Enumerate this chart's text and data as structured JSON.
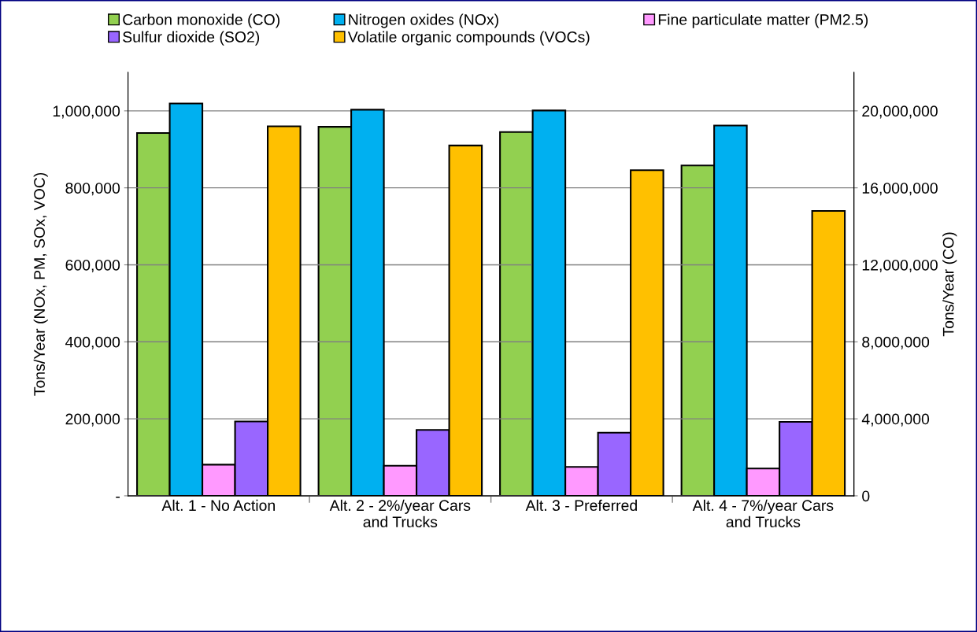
{
  "chart_data": {
    "type": "bar",
    "categories": [
      "Alt. 1 - No Action",
      "Alt. 2 - 2%/year Cars\nand Trucks",
      "Alt. 3 - Preferred",
      "Alt. 4 - 7%/year Cars\nand Trucks"
    ],
    "series": [
      {
        "name": "Carbon monoxide (CO)",
        "color": "#92d050",
        "axis": "y2",
        "values": [
          18850000,
          19170000,
          18900000,
          17160000
        ]
      },
      {
        "name": "Nitrogen oxides (NOx)",
        "color": "#00b0f0",
        "values": [
          1019000,
          1003000,
          1001000,
          962000
        ]
      },
      {
        "name": "Fine particulate matter (PM2.5)",
        "color": "#ff99ff",
        "values": [
          81000,
          78000,
          75000,
          71000
        ]
      },
      {
        "name": "Sulfur dioxide (SO2)",
        "color": "#9966ff",
        "values": [
          193000,
          171000,
          164000,
          192000
        ]
      },
      {
        "name": "Volatile organic compounds (VOCs)",
        "color": "#ffc000",
        "values": [
          960000,
          910000,
          846000,
          740000
        ]
      }
    ],
    "ylabel": "Tons/Year (NOx, PM, SOx, VOC)",
    "y2label": "Tons/Year (CO)",
    "ylim": [
      0,
      1100000
    ],
    "yticks": [
      {
        "value": 0,
        "label": "-"
      },
      {
        "value": 200000,
        "label": "200,000"
      },
      {
        "value": 400000,
        "label": "400,000"
      },
      {
        "value": 600000,
        "label": "600,000"
      },
      {
        "value": 800000,
        "label": "800,000"
      },
      {
        "value": 1000000,
        "label": "1,000,000"
      }
    ],
    "y2lim": [
      0,
      22000000
    ],
    "y2ticks": [
      0,
      {
        "value": 4000000,
        "label": "4,000,000"
      },
      {
        "value": 8000000,
        "label": "8,000,000"
      },
      {
        "value": 12000000,
        "label": "12,000,000"
      },
      {
        "value": 16000000,
        "label": "16,000,000"
      },
      {
        "value": 20000000,
        "label": "20,000,000"
      }
    ],
    "grid": "y",
    "legend": "top"
  }
}
